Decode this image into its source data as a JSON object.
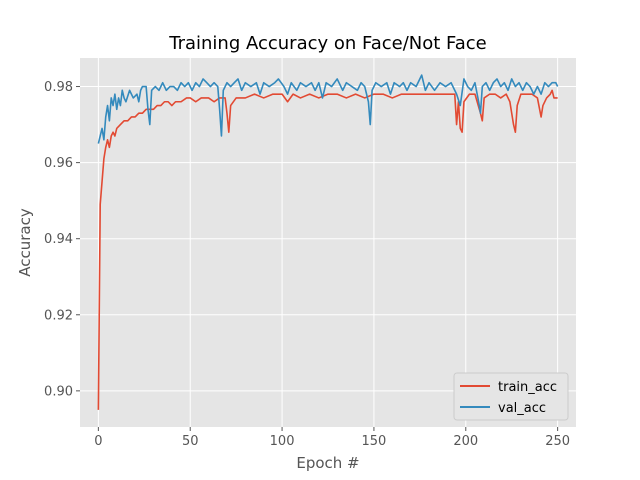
{
  "chart_data": {
    "type": "line",
    "title": "Training Accuracy on Face/Not Face",
    "xlabel": "Epoch #",
    "ylabel": "Accuracy",
    "xlim": [
      -10,
      260
    ],
    "ylim": [
      0.8905,
      0.9875
    ],
    "xticks": [
      0,
      50,
      100,
      150,
      200,
      250
    ],
    "yticks": [
      0.9,
      0.92,
      0.94,
      0.96,
      0.98
    ],
    "ytick_labels": [
      "0.90",
      "0.92",
      "0.94",
      "0.96",
      "0.98"
    ],
    "grid": true,
    "legend_position": "lower right",
    "series": [
      {
        "name": "train_acc",
        "color": "#E24A33",
        "points": [
          [
            0,
            0.895
          ],
          [
            1,
            0.949
          ],
          [
            2,
            0.955
          ],
          [
            3,
            0.961
          ],
          [
            4,
            0.964
          ],
          [
            5,
            0.966
          ],
          [
            6,
            0.964
          ],
          [
            7,
            0.967
          ],
          [
            8,
            0.968
          ],
          [
            9,
            0.967
          ],
          [
            10,
            0.969
          ],
          [
            12,
            0.97
          ],
          [
            14,
            0.971
          ],
          [
            16,
            0.971
          ],
          [
            18,
            0.972
          ],
          [
            20,
            0.972
          ],
          [
            22,
            0.973
          ],
          [
            24,
            0.973
          ],
          [
            26,
            0.974
          ],
          [
            28,
            0.974
          ],
          [
            30,
            0.974
          ],
          [
            32,
            0.975
          ],
          [
            34,
            0.975
          ],
          [
            36,
            0.976
          ],
          [
            38,
            0.976
          ],
          [
            40,
            0.975
          ],
          [
            42,
            0.976
          ],
          [
            45,
            0.976
          ],
          [
            48,
            0.977
          ],
          [
            50,
            0.977
          ],
          [
            53,
            0.976
          ],
          [
            56,
            0.977
          ],
          [
            60,
            0.977
          ],
          [
            63,
            0.976
          ],
          [
            66,
            0.977
          ],
          [
            69,
            0.977
          ],
          [
            70,
            0.973
          ],
          [
            71,
            0.968
          ],
          [
            72,
            0.975
          ],
          [
            75,
            0.977
          ],
          [
            80,
            0.977
          ],
          [
            85,
            0.978
          ],
          [
            90,
            0.977
          ],
          [
            95,
            0.978
          ],
          [
            100,
            0.978
          ],
          [
            103,
            0.976
          ],
          [
            106,
            0.978
          ],
          [
            110,
            0.977
          ],
          [
            115,
            0.978
          ],
          [
            120,
            0.977
          ],
          [
            125,
            0.978
          ],
          [
            130,
            0.978
          ],
          [
            135,
            0.977
          ],
          [
            140,
            0.978
          ],
          [
            145,
            0.977
          ],
          [
            150,
            0.978
          ],
          [
            155,
            0.978
          ],
          [
            160,
            0.977
          ],
          [
            165,
            0.978
          ],
          [
            170,
            0.978
          ],
          [
            175,
            0.978
          ],
          [
            180,
            0.978
          ],
          [
            185,
            0.978
          ],
          [
            190,
            0.978
          ],
          [
            194,
            0.978
          ],
          [
            195,
            0.97
          ],
          [
            196,
            0.976
          ],
          [
            197,
            0.969
          ],
          [
            198,
            0.968
          ],
          [
            199,
            0.976
          ],
          [
            202,
            0.978
          ],
          [
            205,
            0.978
          ],
          [
            208,
            0.973
          ],
          [
            209,
            0.971
          ],
          [
            210,
            0.977
          ],
          [
            213,
            0.978
          ],
          [
            216,
            0.978
          ],
          [
            219,
            0.977
          ],
          [
            222,
            0.978
          ],
          [
            224,
            0.976
          ],
          [
            226,
            0.97
          ],
          [
            227,
            0.968
          ],
          [
            228,
            0.975
          ],
          [
            230,
            0.978
          ],
          [
            233,
            0.978
          ],
          [
            236,
            0.978
          ],
          [
            239,
            0.977
          ],
          [
            241,
            0.972
          ],
          [
            242,
            0.975
          ],
          [
            244,
            0.977
          ],
          [
            246,
            0.978
          ],
          [
            247,
            0.979
          ],
          [
            248,
            0.977
          ],
          [
            250,
            0.977
          ]
        ]
      },
      {
        "name": "val_acc",
        "color": "#348ABD",
        "points": [
          [
            0,
            0.965
          ],
          [
            1,
            0.967
          ],
          [
            2,
            0.969
          ],
          [
            3,
            0.966
          ],
          [
            4,
            0.972
          ],
          [
            5,
            0.975
          ],
          [
            6,
            0.971
          ],
          [
            7,
            0.977
          ],
          [
            8,
            0.975
          ],
          [
            9,
            0.978
          ],
          [
            10,
            0.974
          ],
          [
            11,
            0.977
          ],
          [
            12,
            0.975
          ],
          [
            13,
            0.979
          ],
          [
            14,
            0.977
          ],
          [
            15,
            0.976
          ],
          [
            17,
            0.979
          ],
          [
            19,
            0.977
          ],
          [
            21,
            0.978
          ],
          [
            22,
            0.976
          ],
          [
            23,
            0.979
          ],
          [
            24,
            0.98
          ],
          [
            26,
            0.98
          ],
          [
            27,
            0.974
          ],
          [
            28,
            0.97
          ],
          [
            29,
            0.979
          ],
          [
            31,
            0.98
          ],
          [
            33,
            0.979
          ],
          [
            35,
            0.981
          ],
          [
            37,
            0.979
          ],
          [
            39,
            0.98
          ],
          [
            41,
            0.98
          ],
          [
            43,
            0.979
          ],
          [
            45,
            0.981
          ],
          [
            47,
            0.98
          ],
          [
            49,
            0.981
          ],
          [
            51,
            0.979
          ],
          [
            53,
            0.981
          ],
          [
            55,
            0.98
          ],
          [
            57,
            0.982
          ],
          [
            59,
            0.981
          ],
          [
            61,
            0.98
          ],
          [
            63,
            0.981
          ],
          [
            65,
            0.98
          ],
          [
            66,
            0.974
          ],
          [
            67,
            0.967
          ],
          [
            68,
            0.979
          ],
          [
            70,
            0.981
          ],
          [
            72,
            0.98
          ],
          [
            74,
            0.981
          ],
          [
            76,
            0.982
          ],
          [
            78,
            0.979
          ],
          [
            80,
            0.981
          ],
          [
            83,
            0.98
          ],
          [
            86,
            0.981
          ],
          [
            88,
            0.978
          ],
          [
            90,
            0.981
          ],
          [
            93,
            0.98
          ],
          [
            96,
            0.981
          ],
          [
            98,
            0.982
          ],
          [
            101,
            0.98
          ],
          [
            103,
            0.978
          ],
          [
            105,
            0.981
          ],
          [
            108,
            0.979
          ],
          [
            110,
            0.981
          ],
          [
            113,
            0.98
          ],
          [
            116,
            0.981
          ],
          [
            118,
            0.979
          ],
          [
            120,
            0.981
          ],
          [
            122,
            0.977
          ],
          [
            124,
            0.981
          ],
          [
            127,
            0.98
          ],
          [
            130,
            0.982
          ],
          [
            133,
            0.979
          ],
          [
            135,
            0.981
          ],
          [
            138,
            0.98
          ],
          [
            141,
            0.979
          ],
          [
            143,
            0.981
          ],
          [
            145,
            0.98
          ],
          [
            147,
            0.976
          ],
          [
            148,
            0.97
          ],
          [
            149,
            0.979
          ],
          [
            151,
            0.981
          ],
          [
            154,
            0.98
          ],
          [
            157,
            0.981
          ],
          [
            159,
            0.978
          ],
          [
            161,
            0.981
          ],
          [
            164,
            0.98
          ],
          [
            166,
            0.981
          ],
          [
            168,
            0.979
          ],
          [
            170,
            0.981
          ],
          [
            173,
            0.98
          ],
          [
            176,
            0.983
          ],
          [
            178,
            0.979
          ],
          [
            180,
            0.981
          ],
          [
            183,
            0.979
          ],
          [
            186,
            0.981
          ],
          [
            189,
            0.98
          ],
          [
            192,
            0.981
          ],
          [
            195,
            0.978
          ],
          [
            197,
            0.975
          ],
          [
            199,
            0.982
          ],
          [
            201,
            0.98
          ],
          [
            203,
            0.979
          ],
          [
            205,
            0.981
          ],
          [
            207,
            0.976
          ],
          [
            208,
            0.973
          ],
          [
            209,
            0.98
          ],
          [
            211,
            0.981
          ],
          [
            213,
            0.979
          ],
          [
            215,
            0.981
          ],
          [
            217,
            0.982
          ],
          [
            219,
            0.98
          ],
          [
            221,
            0.981
          ],
          [
            223,
            0.979
          ],
          [
            225,
            0.982
          ],
          [
            227,
            0.98
          ],
          [
            229,
            0.981
          ],
          [
            231,
            0.979
          ],
          [
            233,
            0.981
          ],
          [
            235,
            0.98
          ],
          [
            237,
            0.978
          ],
          [
            239,
            0.98
          ],
          [
            241,
            0.978
          ],
          [
            243,
            0.981
          ],
          [
            245,
            0.98
          ],
          [
            247,
            0.981
          ],
          [
            249,
            0.981
          ],
          [
            250,
            0.98
          ]
        ]
      }
    ]
  }
}
